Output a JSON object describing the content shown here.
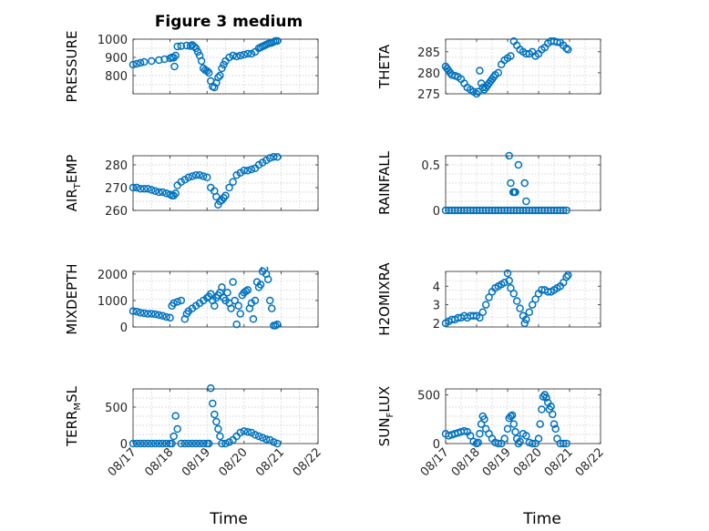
{
  "figure_title": "Figure 3 medium",
  "marker_color": "#0072BD",
  "chart_data": [
    {
      "type": "scatter",
      "ylabel": "PRESSURE",
      "ylabel_sub": "",
      "ylabel_tail": "",
      "ylim": [
        700,
        1000
      ],
      "yticks": [
        800,
        900,
        1000
      ],
      "ytick_labels": [
        "800",
        "900",
        "1000"
      ],
      "grid": true,
      "x": [
        0,
        0.1,
        0.2,
        0.3,
        0.5,
        0.7,
        0.85,
        1.0,
        1.05,
        1.1,
        1.12,
        1.15,
        1.2,
        1.3,
        1.45,
        1.55,
        1.6,
        1.65,
        1.7,
        1.75,
        1.8,
        1.85,
        1.9,
        1.95,
        2.0,
        2.05,
        2.1,
        2.15,
        2.2,
        2.25,
        2.3,
        2.35,
        2.4,
        2.45,
        2.5,
        2.6,
        2.7,
        2.8,
        2.9,
        3.0,
        3.1,
        3.2,
        3.3,
        3.4,
        3.45,
        3.5,
        3.55,
        3.6,
        3.65,
        3.7,
        3.75,
        3.8,
        3.85,
        3.9
      ],
      "y": [
        860,
        865,
        870,
        875,
        880,
        885,
        890,
        895,
        900,
        898,
        850,
        910,
        960,
        962,
        965,
        962,
        968,
        960,
        950,
        930,
        910,
        880,
        840,
        830,
        825,
        815,
        770,
        740,
        735,
        760,
        790,
        800,
        840,
        860,
        880,
        900,
        910,
        905,
        910,
        915,
        920,
        920,
        930,
        950,
        955,
        960,
        965,
        970,
        975,
        978,
        980,
        985,
        990,
        990
      ]
    },
    {
      "type": "scatter",
      "ylabel": "THETA",
      "ylabel_sub": "",
      "ylabel_tail": "",
      "ylim": [
        275,
        288
      ],
      "yticks": [
        275,
        280,
        285
      ],
      "ytick_labels": [
        "275",
        "280",
        "285"
      ],
      "grid": true,
      "x": [
        0,
        0.05,
        0.1,
        0.15,
        0.2,
        0.3,
        0.4,
        0.5,
        0.6,
        0.7,
        0.8,
        0.9,
        1.0,
        1.05,
        1.1,
        1.15,
        1.2,
        1.25,
        1.3,
        1.35,
        1.4,
        1.45,
        1.5,
        1.55,
        1.6,
        1.7,
        1.8,
        1.9,
        2.0,
        2.1,
        2.2,
        2.3,
        2.4,
        2.5,
        2.6,
        2.7,
        2.8,
        2.9,
        3.0,
        3.1,
        3.2,
        3.3,
        3.4,
        3.5,
        3.6,
        3.7,
        3.8,
        3.9,
        3.95
      ],
      "y": [
        281.5,
        281,
        280.5,
        280,
        279.5,
        279.3,
        279,
        278.5,
        277.5,
        276.5,
        276,
        275.5,
        275,
        275.5,
        280.5,
        277.5,
        276.5,
        276,
        276.5,
        277,
        277.5,
        278,
        278.5,
        279,
        279.5,
        280,
        282,
        283,
        283.5,
        284,
        287.5,
        286.5,
        285.5,
        285,
        284.5,
        284.5,
        285,
        284,
        284.5,
        285.5,
        286,
        287,
        287.5,
        287.5,
        287.3,
        287.2,
        286.5,
        285.8,
        285.5
      ]
    },
    {
      "type": "scatter",
      "ylabel": "AIR",
      "ylabel_sub": "T",
      "ylabel_tail": "EMP",
      "ylim": [
        260,
        284
      ],
      "yticks": [
        260,
        270,
        280
      ],
      "ytick_labels": [
        "260",
        "270",
        "280"
      ],
      "grid": true,
      "x": [
        0,
        0.1,
        0.2,
        0.3,
        0.4,
        0.5,
        0.6,
        0.7,
        0.8,
        0.9,
        1.0,
        1.05,
        1.1,
        1.15,
        1.2,
        1.3,
        1.4,
        1.5,
        1.6,
        1.7,
        1.8,
        1.9,
        2.0,
        2.1,
        2.2,
        2.25,
        2.3,
        2.35,
        2.4,
        2.45,
        2.5,
        2.6,
        2.7,
        2.8,
        2.9,
        3.0,
        3.1,
        3.2,
        3.3,
        3.4,
        3.5,
        3.6,
        3.7,
        3.8,
        3.9
      ],
      "y": [
        270,
        270,
        269.5,
        269.5,
        269.5,
        269,
        268.5,
        268,
        268,
        267.5,
        267,
        266.5,
        266.5,
        267.5,
        271,
        272.5,
        273.5,
        274.5,
        275,
        275.5,
        275.5,
        275,
        274.5,
        270,
        268.5,
        266,
        262.5,
        264,
        264.5,
        265.5,
        266.5,
        270,
        272.5,
        275.5,
        276.5,
        277.5,
        277.5,
        278,
        278.5,
        280,
        281,
        282,
        283,
        283.5,
        283.5
      ]
    },
    {
      "type": "scatter",
      "ylabel": "RAINFALL",
      "ylabel_sub": "",
      "ylabel_tail": "",
      "ylim": [
        0,
        0.6
      ],
      "yticks": [
        0,
        0.5
      ],
      "ytick_labels": [
        "0",
        "0.5"
      ],
      "grid": true,
      "x": [
        0,
        0.1,
        0.2,
        0.3,
        0.4,
        0.5,
        0.6,
        0.7,
        0.8,
        0.9,
        1.0,
        1.1,
        1.2,
        1.3,
        1.4,
        1.5,
        1.6,
        1.7,
        1.8,
        1.9,
        2.0,
        2.1,
        2.2,
        2.3,
        2.4,
        2.5,
        2.6,
        2.7,
        2.8,
        2.9,
        3.0,
        3.1,
        3.2,
        3.3,
        3.4,
        3.5,
        3.6,
        3.7,
        3.8,
        3.9,
        2.05,
        2.1,
        2.18,
        2.2,
        2.25,
        2.35,
        2.55,
        2.6,
        2.22
      ],
      "y": [
        0,
        0,
        0,
        0,
        0,
        0,
        0,
        0,
        0,
        0,
        0,
        0,
        0,
        0,
        0,
        0,
        0,
        0,
        0,
        0,
        0,
        0,
        0,
        0,
        0,
        0,
        0,
        0,
        0,
        0,
        0,
        0,
        0,
        0,
        0,
        0,
        0,
        0,
        0,
        0,
        0.6,
        0.3,
        0.2,
        0.2,
        0.2,
        0.5,
        0.3,
        0.1,
        0.2
      ]
    },
    {
      "type": "scatter",
      "ylabel": "MIXDEPTH",
      "ylabel_sub": "",
      "ylabel_tail": "",
      "ylim": [
        0,
        2100
      ],
      "yticks": [
        0,
        1000,
        2000
      ],
      "ytick_labels": [
        "0",
        "1000",
        "2000"
      ],
      "grid": true,
      "x": [
        0,
        0.1,
        0.2,
        0.3,
        0.4,
        0.5,
        0.6,
        0.7,
        0.8,
        0.9,
        1.0,
        1.05,
        1.1,
        1.2,
        1.3,
        1.4,
        1.45,
        1.5,
        1.6,
        1.7,
        1.8,
        1.9,
        2.0,
        2.05,
        2.1,
        2.15,
        2.2,
        2.25,
        2.3,
        2.35,
        2.4,
        2.45,
        2.5,
        2.55,
        2.6,
        2.65,
        2.7,
        2.75,
        2.8,
        2.85,
        2.9,
        2.95,
        3.0,
        3.05,
        3.1,
        3.15,
        3.2,
        3.25,
        3.3,
        3.35,
        3.4,
        3.45,
        3.5,
        3.55,
        3.6,
        3.65,
        3.7,
        3.75,
        3.8,
        3.85,
        3.9
      ],
      "y": [
        600,
        580,
        540,
        520,
        500,
        500,
        480,
        450,
        420,
        380,
        350,
        800,
        900,
        950,
        1000,
        300,
        500,
        600,
        700,
        800,
        900,
        1000,
        1100,
        1150,
        1250,
        1000,
        800,
        1100,
        1200,
        1300,
        1500,
        1100,
        1000,
        1300,
        900,
        700,
        1700,
        1000,
        100,
        800,
        500,
        1200,
        1300,
        1350,
        1400,
        700,
        900,
        300,
        1000,
        1700,
        1500,
        1600,
        2100,
        2200,
        2000,
        1800,
        1000,
        700,
        50,
        50,
        100
      ]
    },
    {
      "type": "scatter",
      "ylabel": "H2OMIXRA",
      "ylabel_sub": "",
      "ylabel_tail": "",
      "ylim": [
        1.8,
        4.8
      ],
      "yticks": [
        2,
        3,
        4
      ],
      "ytick_labels": [
        "2",
        "3",
        "4"
      ],
      "grid": true,
      "x": [
        0,
        0.1,
        0.2,
        0.3,
        0.4,
        0.5,
        0.6,
        0.7,
        0.8,
        0.9,
        1.0,
        1.1,
        1.2,
        1.3,
        1.4,
        1.5,
        1.6,
        1.7,
        1.8,
        1.9,
        2.0,
        2.05,
        2.1,
        2.2,
        2.3,
        2.4,
        2.5,
        2.55,
        2.6,
        2.7,
        2.8,
        2.9,
        3.0,
        3.1,
        3.2,
        3.3,
        3.4,
        3.5,
        3.6,
        3.7,
        3.8,
        3.9,
        3.95
      ],
      "y": [
        2,
        2.1,
        2.2,
        2.2,
        2.3,
        2.3,
        2.4,
        2.3,
        2.4,
        2.4,
        2.4,
        2.3,
        2.6,
        3.0,
        3.4,
        3.7,
        3.9,
        4.0,
        4.1,
        4.2,
        4.7,
        4.3,
        3.9,
        3.6,
        3.2,
        2.8,
        2.4,
        2.0,
        2.2,
        2.6,
        3.0,
        3.3,
        3.6,
        3.8,
        3.8,
        3.7,
        3.7,
        3.8,
        3.9,
        4.0,
        4.2,
        4.5,
        4.6
      ]
    },
    {
      "type": "scatter",
      "ylabel": "TERR",
      "ylabel_sub": "M",
      "ylabel_tail": "SL",
      "ylim": [
        0,
        750
      ],
      "yticks": [
        0,
        500
      ],
      "ytick_labels": [
        "0",
        "500"
      ],
      "grid": true,
      "x": [
        0,
        0.1,
        0.2,
        0.3,
        0.4,
        0.5,
        0.6,
        0.7,
        0.8,
        0.9,
        1.0,
        1.05,
        1.1,
        1.15,
        1.2,
        1.3,
        1.4,
        1.5,
        1.6,
        1.7,
        1.8,
        1.9,
        2.0,
        2.05,
        2.1,
        2.15,
        2.2,
        2.25,
        2.3,
        2.35,
        2.4,
        2.5,
        2.6,
        2.7,
        2.8,
        2.9,
        3.0,
        3.1,
        3.2,
        3.3,
        3.4,
        3.5,
        3.6,
        3.7,
        3.8,
        3.9
      ],
      "y": [
        0,
        0,
        0,
        0,
        0,
        0,
        0,
        0,
        0,
        0,
        0,
        0,
        100,
        380,
        200,
        0,
        0,
        0,
        0,
        0,
        0,
        0,
        0,
        0,
        760,
        550,
        400,
        300,
        200,
        100,
        0,
        0,
        20,
        50,
        100,
        150,
        170,
        160,
        150,
        120,
        100,
        80,
        60,
        50,
        20,
        0
      ]
    },
    {
      "type": "scatter",
      "ylabel": "SUN",
      "ylabel_sub": "F",
      "ylabel_tail": "LUX",
      "ylim": [
        0,
        560
      ],
      "yticks": [
        0,
        500
      ],
      "ytick_labels": [
        "0",
        "500"
      ],
      "grid": true,
      "x": [
        0,
        0.1,
        0.2,
        0.3,
        0.4,
        0.5,
        0.6,
        0.7,
        0.8,
        0.9,
        1.0,
        1.05,
        1.1,
        1.15,
        1.2,
        1.25,
        1.3,
        1.4,
        1.5,
        1.6,
        1.7,
        1.8,
        1.9,
        2.0,
        2.05,
        2.1,
        2.15,
        2.2,
        2.25,
        2.3,
        2.35,
        2.4,
        2.5,
        2.6,
        2.7,
        2.8,
        2.9,
        3.0,
        3.05,
        3.1,
        3.15,
        3.2,
        3.25,
        3.3,
        3.35,
        3.4,
        3.45,
        3.5,
        3.55,
        3.6,
        3.7,
        3.8,
        3.9
      ],
      "y": [
        100,
        80,
        90,
        100,
        110,
        120,
        130,
        120,
        80,
        20,
        0,
        10,
        100,
        200,
        280,
        250,
        150,
        100,
        50,
        10,
        0,
        0,
        50,
        150,
        260,
        280,
        290,
        200,
        120,
        50,
        0,
        20,
        100,
        80,
        10,
        0,
        0,
        50,
        200,
        350,
        480,
        500,
        470,
        420,
        350,
        380,
        300,
        200,
        150,
        50,
        0,
        0,
        0
      ]
    }
  ],
  "x_axis": {
    "label": "Time",
    "xlim": [
      0,
      5
    ],
    "ticks": [
      0,
      1,
      2,
      3,
      4,
      5
    ],
    "tick_labels": [
      "08/17",
      "08/18",
      "08/19",
      "08/20",
      "08/21",
      "08/22"
    ]
  }
}
